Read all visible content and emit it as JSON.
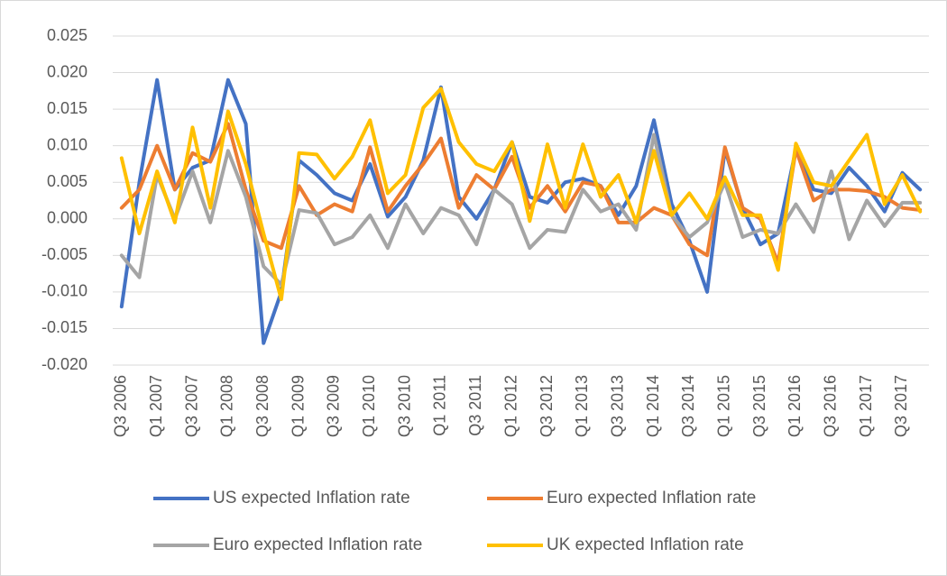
{
  "chart_data": {
    "type": "line",
    "categories": [
      "Q3 2006",
      null,
      "Q1 2007",
      null,
      "Q3 2007",
      null,
      "Q1 2008",
      null,
      "Q3 2008",
      null,
      "Q1 2009",
      null,
      "Q3 2009",
      null,
      "Q1 2010",
      null,
      "Q3 2010",
      null,
      "Q1 2011",
      null,
      "Q3 2011",
      null,
      "Q1 2012",
      null,
      "Q3 2012",
      null,
      "Q1 2013",
      null,
      "Q3 2013",
      null,
      "Q1 2014",
      null,
      "Q3 2014",
      null,
      "Q1 2015",
      null,
      "Q3 2015",
      null,
      "Q1 2016",
      null,
      "Q3 2016",
      null,
      "Q1 2017",
      null,
      "Q3 2017",
      null
    ],
    "series": [
      {
        "name": "US expected Inflation rate",
        "color": "#4472c4",
        "values": [
          -0.012,
          0.005,
          0.019,
          0.004,
          0.007,
          0.008,
          0.019,
          0.013,
          -0.017,
          -0.01,
          0.008,
          0.006,
          0.0035,
          0.0025,
          0.0075,
          0.0003,
          0.003,
          0.008,
          0.018,
          0.003,
          0,
          0.004,
          0.0105,
          0.003,
          0.0022,
          0.005,
          0.0055,
          0.0045,
          0.0005,
          0.0045,
          0.0135,
          0.002,
          -0.003,
          -0.01,
          0.0095,
          0.0015,
          -0.0035,
          -0.002,
          0.0095,
          0.004,
          0.0035,
          0.007,
          0.0045,
          0.001,
          0.0063,
          0.004
        ]
      },
      {
        "name": "Euro expected Inflation rate",
        "color": "#ed7d31",
        "values": [
          0.0015,
          0.004,
          0.01,
          0.004,
          0.009,
          0.0078,
          0.013,
          0.004,
          -0.003,
          -0.004,
          0.0045,
          0.0005,
          0.002,
          0.001,
          0.0098,
          0.001,
          0.0045,
          0.0075,
          0.011,
          0.0015,
          0.006,
          0.004,
          0.0085,
          0.0015,
          0.0045,
          0.001,
          0.005,
          0.0045,
          -0.0005,
          -0.0005,
          0.0015,
          0.0005,
          -0.0035,
          -0.005,
          0.0098,
          0.0015,
          0,
          -0.006,
          0.0095,
          0.0025,
          0.004,
          0.004,
          0.0038,
          0.003,
          0.0015,
          0.0012
        ]
      },
      {
        "name": "Euro expected Inflation rate",
        "color": "#a5a5a5",
        "values": [
          -0.005,
          -0.008,
          0.006,
          0,
          0.0065,
          -0.0005,
          0.0093,
          0.003,
          -0.0065,
          -0.009,
          0.0012,
          0.0008,
          -0.0035,
          -0.0025,
          0.0005,
          -0.004,
          0.002,
          -0.002,
          0.0015,
          0.0005,
          -0.0035,
          0.004,
          0.002,
          -0.004,
          -0.0015,
          -0.0018,
          0.004,
          0.001,
          0.002,
          -0.0015,
          0.0115,
          0.0005,
          -0.0025,
          -0.0005,
          0.005,
          -0.0025,
          -0.0015,
          -0.002,
          0.002,
          -0.0018,
          0.0065,
          -0.0028,
          0.0025,
          -0.001,
          0.0022,
          0.0022
        ]
      },
      {
        "name": "UK expected Inflation rate",
        "color": "#ffc000",
        "values": [
          0.0083,
          -0.002,
          0.0065,
          -0.0005,
          0.0125,
          0.0015,
          0.0147,
          0.0075,
          -0.002,
          -0.011,
          0.009,
          0.0088,
          0.0055,
          0.0085,
          0.0135,
          0.0035,
          0.006,
          0.0152,
          0.0178,
          0.0105,
          0.0075,
          0.0065,
          0.0105,
          -0.0003,
          0.0102,
          0.0015,
          0.0102,
          0.003,
          0.006,
          -0.0005,
          0.0093,
          0.0005,
          0.0035,
          0,
          0.0057,
          0.0005,
          0.0005,
          -0.007,
          0.0103,
          0.005,
          0.0045,
          0.008,
          0.0115,
          0.002,
          0.006,
          0.001
        ]
      }
    ],
    "ylim": [
      -0.02,
      0.025
    ],
    "yticks": [
      {
        "value": -0.02,
        "label": "-0.020"
      },
      -0.015,
      {
        "value": -0.01,
        "label": "-0.010"
      },
      -0.005,
      {
        "value": 0,
        "label": "0.000"
      },
      0.005,
      {
        "value": 0.01,
        "label": "0.010"
      },
      0.015,
      {
        "value": 0.02,
        "label": "0.020"
      },
      0.025
    ],
    "grid": true,
    "legend": "bottom"
  }
}
